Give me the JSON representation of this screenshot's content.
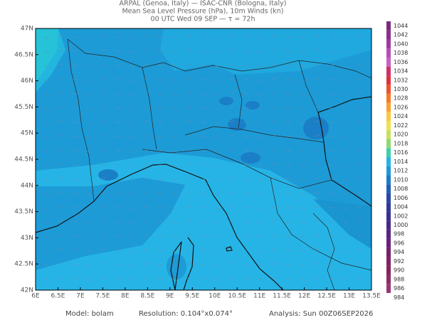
{
  "header": {
    "line1": "ARPAL (Genoa, Italy)  —  ISAC-CNR (Bologna, Italy)",
    "line2": "Mean Sea Level Pressure (hPa), 10m Winds (kn)",
    "line3": "00 UTC Wed 09 SEP  —  τ = 72h"
  },
  "map": {
    "lon_labels": [
      "6E",
      "6.5E",
      "7E",
      "7.5E",
      "8E",
      "8.5E",
      "9E",
      "9.5E",
      "10E",
      "10.5E",
      "11E",
      "11.5E",
      "12E",
      "12.5E",
      "13E",
      "13.5E"
    ],
    "lat_labels": [
      "47N",
      "46.5N",
      "46N",
      "45.5N",
      "45N",
      "44.5N",
      "44N",
      "43.5N",
      "43N",
      "42.5N",
      "42N"
    ]
  },
  "colorbar": {
    "levels": [
      "1044",
      "1042",
      "1040",
      "1038",
      "1036",
      "1034",
      "1032",
      "1030",
      "1028",
      "1026",
      "1024",
      "1022",
      "1020",
      "1018",
      "1016",
      "1014",
      "1012",
      "1010",
      "1008",
      "1006",
      "1004",
      "1002",
      "1000",
      "998",
      "996",
      "994",
      "992",
      "990",
      "988",
      "986",
      "984"
    ]
  },
  "footer": {
    "model": "Model: bolam",
    "resolution": "Resolution: 0.104°x0.074°",
    "analysis": "Analysis: Sun 00Z06SEP2026"
  }
}
